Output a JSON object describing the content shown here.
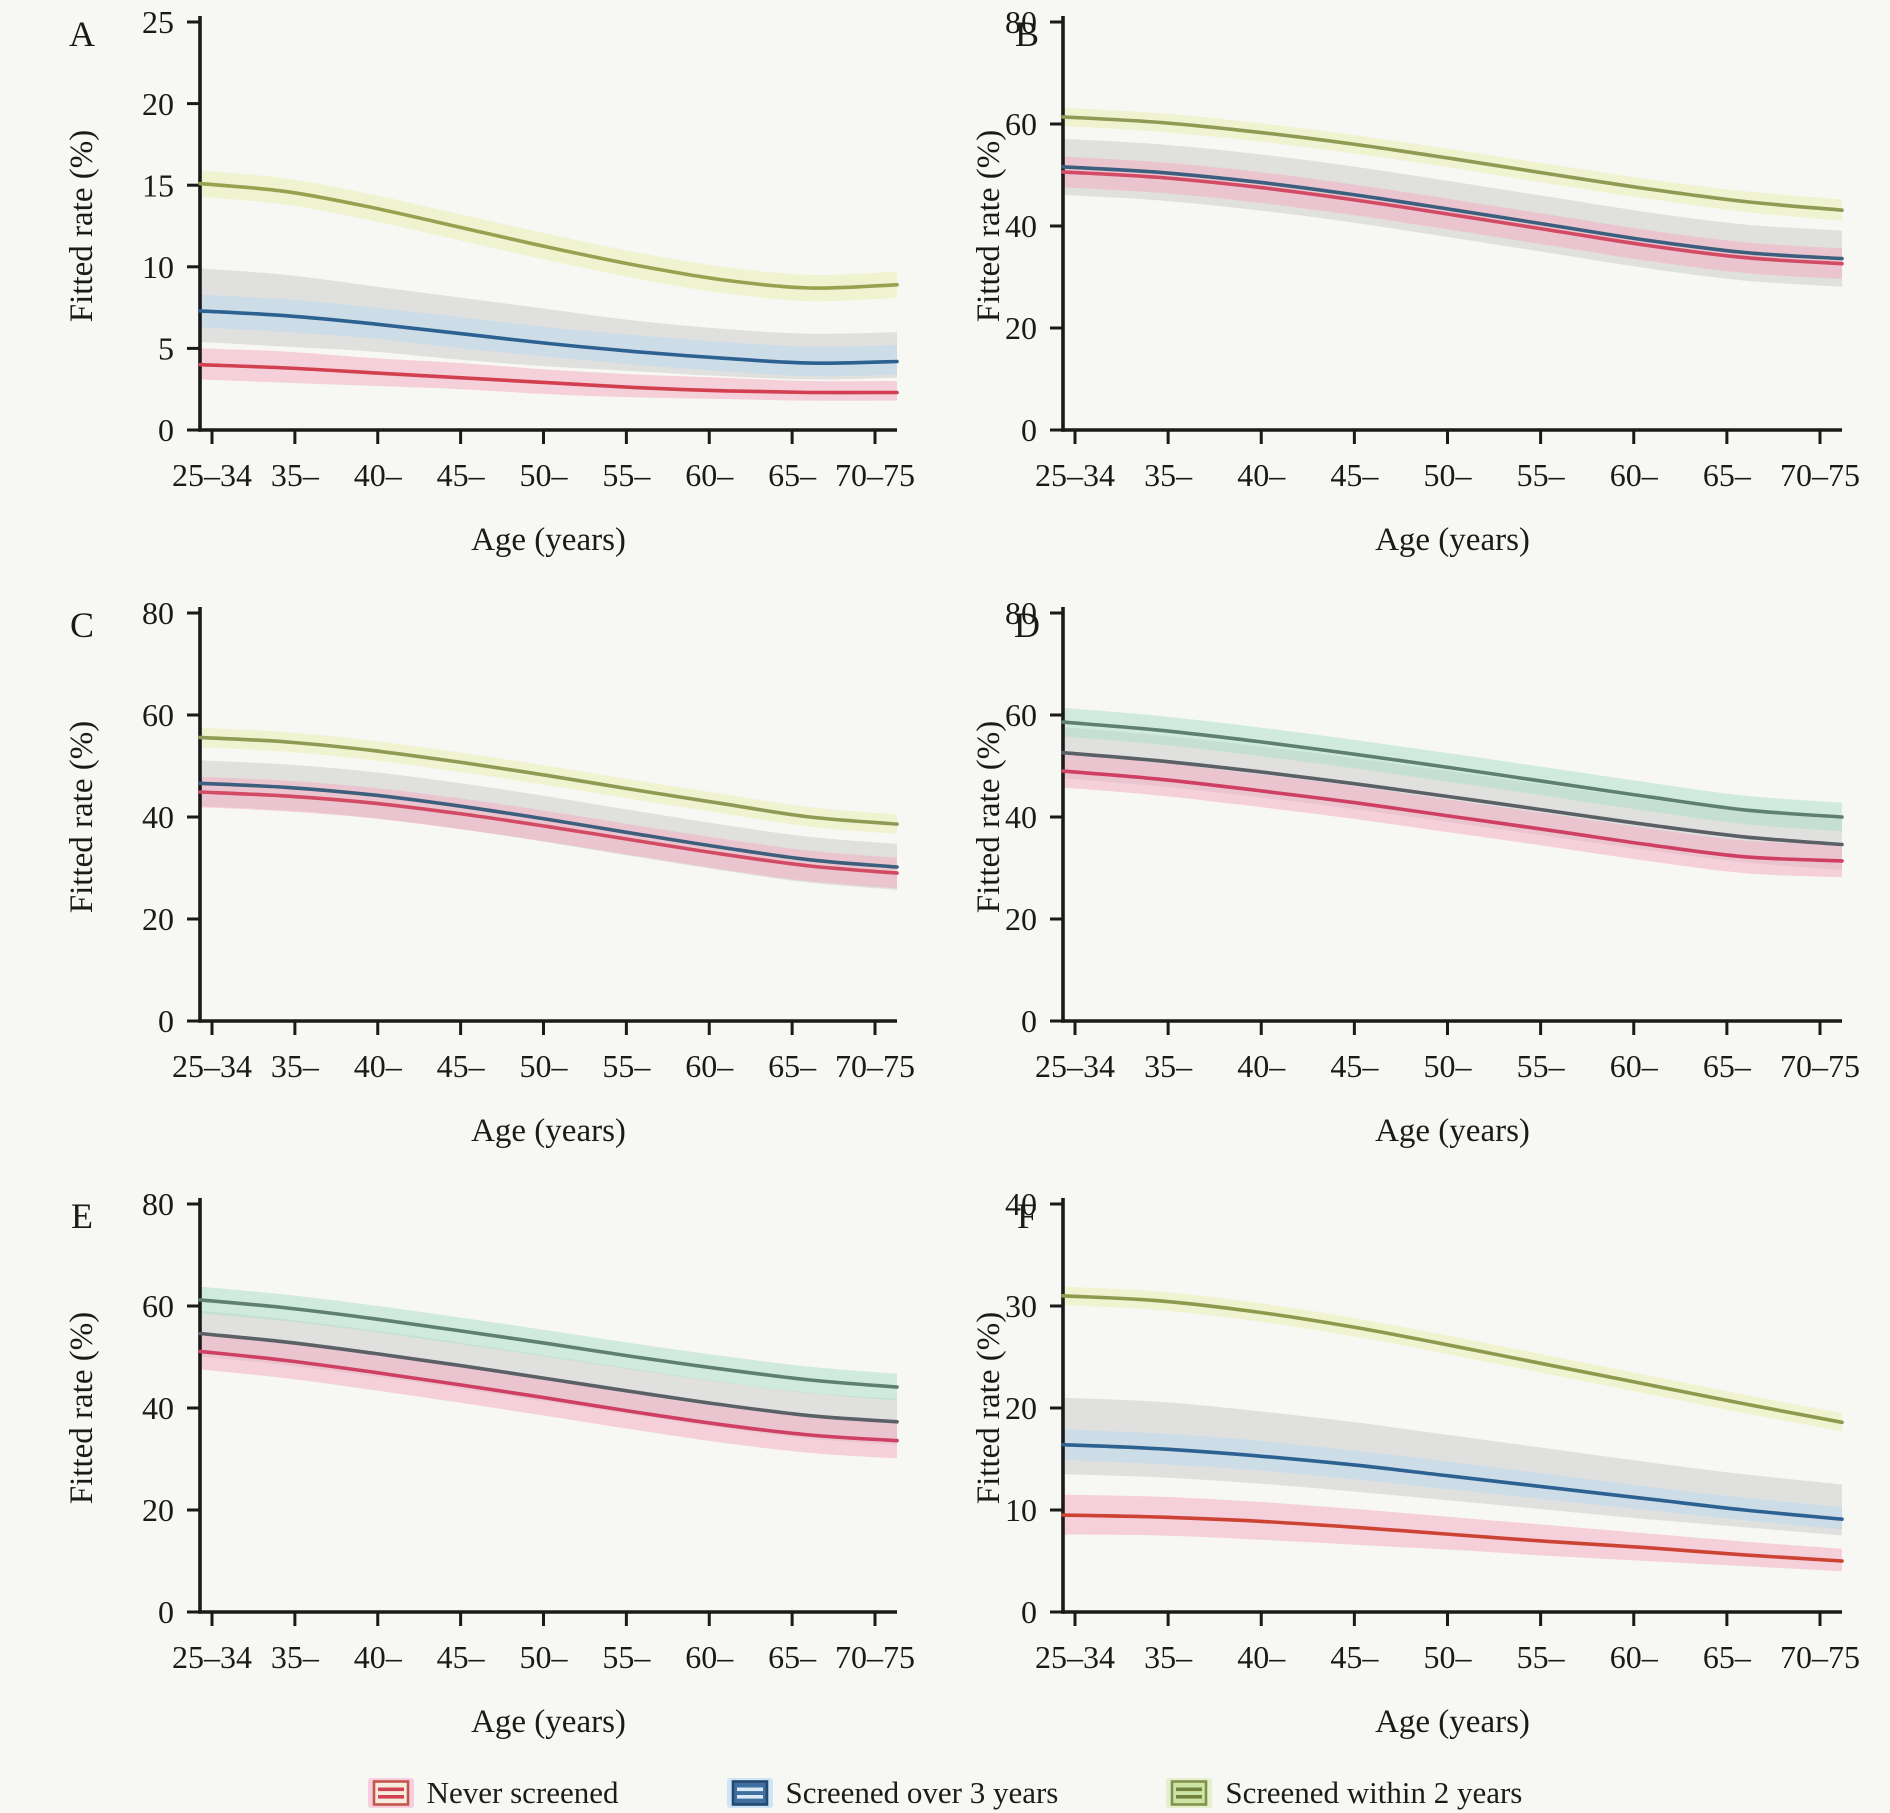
{
  "figure": {
    "xlabel": "Age (years)",
    "ylabel": "Fitted rate (%)",
    "categories": [
      "25–34",
      "35–",
      "40–",
      "45–",
      "50–",
      "55–",
      "60–",
      "65–",
      "70–75"
    ],
    "background": "#f7f7f4",
    "axis_color": "#1a1a1a"
  },
  "legend": {
    "items": [
      {
        "label": "Never screened",
        "swatch": {
          "halo": "#f7cede",
          "fill": "#f6ecdf",
          "border": "#c4554a",
          "stripes": "#d24250"
        }
      },
      {
        "label": "Screened over 3 years",
        "swatch": {
          "halo": "#cfe4f4",
          "fill": "#3f6f9e",
          "border": "#23486e",
          "stripes": "#d8e9f6"
        }
      },
      {
        "label": "Screened within 2 years",
        "swatch": {
          "halo": "#e3efcd",
          "fill": "#cbe4a5",
          "border": "#82914c",
          "stripes": "#72813c"
        }
      }
    ]
  },
  "chart_data": [
    {
      "type": "line",
      "label": "A",
      "ymax": 25,
      "yticks": [
        0,
        5,
        10,
        15,
        20,
        25
      ],
      "series": [
        {
          "name": "Never screened",
          "color": "#d23f4e",
          "band_color": "#f4a8c0",
          "values": [
            4.0,
            3.8,
            3.5,
            3.2,
            2.9,
            2.6,
            2.4,
            2.3,
            2.3
          ],
          "band_upper": [
            5.0,
            4.8,
            4.4,
            4.1,
            3.7,
            3.4,
            3.2,
            3.0,
            3.0
          ],
          "band_lower": [
            3.1,
            2.9,
            2.7,
            2.5,
            2.2,
            2.0,
            1.9,
            1.8,
            1.8
          ]
        },
        {
          "name": "Screened over 3 years",
          "color": "#2d6191",
          "band_color": "#c9c9c9",
          "values": [
            7.3,
            7.0,
            6.5,
            5.9,
            5.3,
            4.8,
            4.4,
            4.1,
            4.2
          ],
          "band_upper": [
            9.9,
            9.5,
            8.8,
            8.1,
            7.4,
            6.7,
            6.2,
            5.9,
            6.0
          ],
          "band_lower": [
            5.4,
            5.1,
            4.8,
            4.3,
            3.9,
            3.6,
            3.3,
            3.1,
            3.2
          ],
          "inner_band": {
            "color": "#b9d9f2",
            "upper": [
              8.3,
              8.0,
              7.5,
              6.9,
              6.3,
              5.8,
              5.4,
              5.1,
              5.2
            ],
            "lower": [
              6.3,
              6.0,
              5.6,
              5.0,
              4.5,
              4.0,
              3.6,
              3.3,
              3.4
            ]
          }
        },
        {
          "name": "Screened within 2 years",
          "color": "#97a14f",
          "band_color": "#e9efa9",
          "values": [
            15.1,
            14.6,
            13.6,
            12.4,
            11.2,
            10.1,
            9.2,
            8.7,
            8.9
          ],
          "band_upper": [
            15.9,
            15.4,
            14.4,
            13.2,
            12.0,
            10.9,
            10.0,
            9.5,
            9.7
          ],
          "band_lower": [
            14.3,
            13.8,
            12.8,
            11.6,
            10.4,
            9.3,
            8.4,
            7.9,
            8.1
          ]
        }
      ]
    },
    {
      "type": "line",
      "label": "B",
      "ymax": 80,
      "yticks": [
        0,
        20,
        40,
        60,
        80
      ],
      "series": [
        {
          "name": "Never screened",
          "color": "#d24a64",
          "band_color": "#f4a8c0",
          "values": [
            50.6,
            49.5,
            47.6,
            45.1,
            42.2,
            39.2,
            36.2,
            33.8,
            32.6
          ],
          "band_upper": [
            53.6,
            52.5,
            50.6,
            48.1,
            45.2,
            42.2,
            39.2,
            36.8,
            35.6
          ],
          "band_lower": [
            47.6,
            46.5,
            44.6,
            42.1,
            39.2,
            36.2,
            33.2,
            30.8,
            29.6
          ]
        },
        {
          "name": "Screened over 3 years",
          "color": "#3c5f7d",
          "band_color": "#c9c9c9",
          "values": [
            51.6,
            50.5,
            48.6,
            46.1,
            43.2,
            40.2,
            37.2,
            34.8,
            33.6
          ],
          "band_upper": [
            57.1,
            56.0,
            54.1,
            51.6,
            48.7,
            45.7,
            42.7,
            40.3,
            39.1
          ],
          "band_lower": [
            46.1,
            45.0,
            43.1,
            40.6,
            37.7,
            34.7,
            31.7,
            29.3,
            28.1
          ]
        },
        {
          "name": "Screened within 2 years",
          "color": "#8f9a54",
          "band_color": "#e9efa9",
          "values": [
            61.4,
            60.3,
            58.4,
            56.0,
            53.2,
            50.2,
            47.3,
            44.8,
            43.1
          ],
          "band_upper": [
            63.2,
            62.1,
            60.2,
            57.8,
            55.0,
            52.1,
            49.2,
            46.8,
            45.2
          ],
          "band_lower": [
            59.6,
            58.5,
            56.6,
            54.2,
            51.4,
            48.3,
            45.4,
            42.8,
            41.0
          ]
        }
      ]
    },
    {
      "type": "line",
      "label": "C",
      "ymax": 80,
      "yticks": [
        0,
        20,
        40,
        60,
        80
      ],
      "series": [
        {
          "name": "Never screened",
          "color": "#d24a64",
          "band_color": "#f4a8c0",
          "values": [
            44.9,
            44.1,
            42.7,
            40.6,
            38.1,
            35.4,
            32.7,
            30.4,
            29.0
          ],
          "band_upper": [
            47.9,
            47.1,
            45.7,
            43.6,
            41.1,
            38.4,
            35.7,
            33.4,
            32.0
          ],
          "band_lower": [
            41.9,
            41.1,
            39.7,
            37.6,
            35.1,
            32.4,
            29.7,
            27.4,
            26.0
          ]
        },
        {
          "name": "Screened over 3 years",
          "color": "#3c5f7d",
          "band_color": "#c9c9c9",
          "values": [
            46.6,
            45.8,
            44.3,
            42.1,
            39.5,
            36.7,
            34.0,
            31.6,
            30.2
          ],
          "band_upper": [
            51.1,
            50.3,
            48.8,
            46.6,
            44.0,
            41.2,
            38.5,
            36.1,
            34.7
          ],
          "band_lower": [
            42.1,
            41.3,
            39.8,
            37.6,
            35.0,
            32.2,
            29.5,
            27.1,
            25.7
          ]
        },
        {
          "name": "Screened within 2 years",
          "color": "#8f9a54",
          "band_color": "#e9efa9",
          "values": [
            55.6,
            54.7,
            53.0,
            50.7,
            48.1,
            45.3,
            42.6,
            40.0,
            38.6
          ],
          "band_upper": [
            57.5,
            56.6,
            54.9,
            52.6,
            50.0,
            47.2,
            44.5,
            41.9,
            40.5
          ],
          "band_lower": [
            53.7,
            52.8,
            51.1,
            48.8,
            46.2,
            43.4,
            40.7,
            38.1,
            36.7
          ]
        }
      ]
    },
    {
      "type": "line",
      "label": "D",
      "ymax": 80,
      "yticks": [
        0,
        20,
        40,
        60,
        80
      ],
      "series": [
        {
          "name": "Never screened",
          "color": "#cf3f63",
          "band_color": "#f4a8c0",
          "values": [
            49.0,
            47.4,
            45.2,
            42.8,
            40.1,
            37.4,
            34.6,
            32.2,
            31.4
          ],
          "band_upper": [
            52.2,
            50.6,
            48.4,
            46.0,
            43.3,
            40.6,
            37.8,
            35.4,
            34.6
          ],
          "band_lower": [
            45.8,
            44.2,
            42.0,
            39.6,
            36.9,
            34.2,
            31.4,
            29.0,
            28.2
          ]
        },
        {
          "name": "Screened over 3 years",
          "color": "#5b6066",
          "band_color": "#c9c9c9",
          "values": [
            52.6,
            51.0,
            48.9,
            46.5,
            43.9,
            41.2,
            38.5,
            36.1,
            34.6
          ],
          "band_upper": [
            57.6,
            56.0,
            53.9,
            51.5,
            48.9,
            46.2,
            43.5,
            41.1,
            39.6
          ],
          "band_lower": [
            47.6,
            46.0,
            43.9,
            41.5,
            38.9,
            36.2,
            33.5,
            31.1,
            29.6
          ]
        },
        {
          "name": "Screened within 2 years",
          "color": "#5e7f72",
          "band_color": "#a9dfc8",
          "values": [
            58.6,
            57.0,
            54.8,
            52.3,
            49.6,
            46.8,
            44.0,
            41.4,
            40.0
          ],
          "band_upper": [
            61.4,
            59.8,
            57.6,
            55.1,
            52.4,
            49.6,
            46.8,
            44.2,
            42.8
          ],
          "band_lower": [
            55.8,
            54.2,
            52.0,
            49.5,
            46.8,
            44.0,
            41.2,
            38.6,
            37.2
          ]
        }
      ]
    },
    {
      "type": "line",
      "label": "E",
      "ymax": 80,
      "yticks": [
        0,
        20,
        40,
        60,
        80
      ],
      "series": [
        {
          "name": "Never screened",
          "color": "#cf3f63",
          "band_color": "#f4a8c0",
          "values": [
            51.1,
            49.3,
            47.0,
            44.5,
            41.9,
            39.2,
            36.7,
            34.7,
            33.6
          ],
          "band_upper": [
            54.6,
            52.8,
            50.5,
            48.0,
            45.4,
            42.7,
            40.2,
            38.2,
            37.1
          ],
          "band_lower": [
            47.6,
            45.8,
            43.5,
            41.0,
            38.4,
            35.7,
            33.2,
            31.2,
            30.1
          ]
        },
        {
          "name": "Screened over 3 years",
          "color": "#5b6066",
          "band_color": "#c9c9c9",
          "values": [
            54.6,
            52.9,
            50.7,
            48.3,
            45.7,
            43.1,
            40.6,
            38.5,
            37.3
          ],
          "band_upper": [
            59.1,
            57.4,
            55.2,
            52.8,
            50.2,
            47.6,
            45.1,
            43.0,
            41.8
          ],
          "band_lower": [
            50.1,
            48.4,
            46.2,
            43.8,
            41.2,
            38.6,
            36.1,
            34.0,
            32.8
          ]
        },
        {
          "name": "Screened within 2 years",
          "color": "#5e7f72",
          "band_color": "#a9dfc8",
          "values": [
            61.2,
            59.6,
            57.5,
            55.1,
            52.6,
            50.0,
            47.6,
            45.5,
            44.1
          ],
          "band_upper": [
            63.8,
            62.2,
            60.1,
            57.7,
            55.2,
            52.6,
            50.2,
            48.1,
            46.7
          ],
          "band_lower": [
            58.6,
            57.0,
            54.9,
            52.5,
            50.0,
            47.4,
            45.0,
            42.9,
            41.5
          ]
        }
      ]
    },
    {
      "type": "line",
      "label": "F",
      "ymax": 40,
      "yticks": [
        0,
        10,
        20,
        30,
        40
      ],
      "series": [
        {
          "name": "Never screened",
          "color": "#cc4333",
          "band_color": "#f4a8c0",
          "values": [
            9.5,
            9.3,
            8.9,
            8.3,
            7.6,
            6.9,
            6.3,
            5.6,
            5.0
          ],
          "band_upper": [
            11.5,
            11.3,
            10.8,
            10.1,
            9.3,
            8.5,
            7.7,
            6.9,
            6.2
          ],
          "band_lower": [
            7.6,
            7.5,
            7.1,
            6.6,
            6.1,
            5.5,
            5.0,
            4.5,
            4.0
          ]
        },
        {
          "name": "Screened over 3 years",
          "color": "#2d6191",
          "band_color": "#c9c9c9",
          "values": [
            16.4,
            16.0,
            15.3,
            14.4,
            13.3,
            12.2,
            11.1,
            10.0,
            9.1
          ],
          "band_upper": [
            21.0,
            20.6,
            19.7,
            18.6,
            17.3,
            16.0,
            14.7,
            13.5,
            12.5
          ],
          "band_lower": [
            13.5,
            13.2,
            12.6,
            11.8,
            10.9,
            10.0,
            9.1,
            8.3,
            7.5
          ],
          "inner_band": {
            "color": "#b9d9f2",
            "upper": [
              17.9,
              17.5,
              16.8,
              15.8,
              14.7,
              13.5,
              12.3,
              11.2,
              10.3
            ],
            "lower": [
              14.9,
              14.5,
              13.9,
              13.0,
              12.0,
              11.0,
              10.0,
              9.0,
              8.1
            ]
          }
        },
        {
          "name": "Screened within 2 years",
          "color": "#8d9a4e",
          "band_color": "#e9efa9",
          "values": [
            31.0,
            30.5,
            29.4,
            27.9,
            26.1,
            24.2,
            22.3,
            20.4,
            18.6
          ],
          "band_upper": [
            31.9,
            31.4,
            30.3,
            28.8,
            27.0,
            25.1,
            23.2,
            21.3,
            19.5
          ],
          "band_lower": [
            30.1,
            29.6,
            28.5,
            27.0,
            25.2,
            23.3,
            21.4,
            19.5,
            17.7
          ]
        }
      ]
    }
  ]
}
